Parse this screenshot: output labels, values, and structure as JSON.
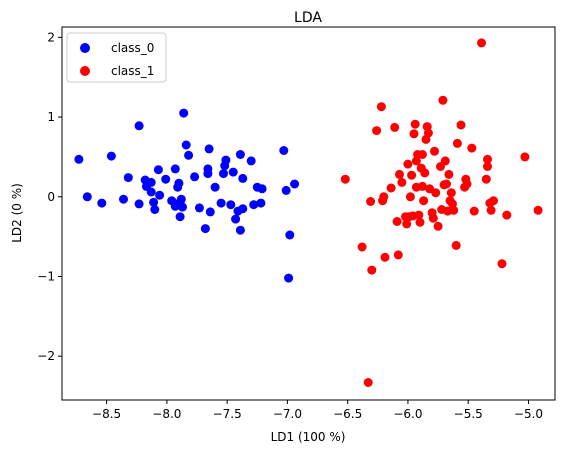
{
  "chart_data": {
    "type": "scatter",
    "title": "LDA",
    "xlabel": "LD1 (100 %)",
    "ylabel": "LD2 (0 %)",
    "xlim": [
      -8.87,
      -4.78
    ],
    "ylim": [
      -2.55,
      2.13
    ],
    "xticks": [
      -8.5,
      -8.0,
      -7.5,
      -7.0,
      -6.5,
      -6.0,
      -5.5,
      -5.0
    ],
    "xtick_labels": [
      "−8.5",
      "−8.0",
      "−7.5",
      "−7.0",
      "−6.5",
      "−6.0",
      "−5.5",
      "−5.0"
    ],
    "yticks": [
      -2,
      -1,
      0,
      1,
      2
    ],
    "ytick_labels": [
      "−2",
      "−1",
      "0",
      "1",
      "2"
    ],
    "grid": false,
    "legend_position": "top-left",
    "series": [
      {
        "name": "class_0",
        "color": "#0000ff",
        "points": [
          [
            -8.73,
            0.47
          ],
          [
            -8.66,
            0.0
          ],
          [
            -8.54,
            -0.08
          ],
          [
            -8.46,
            0.51
          ],
          [
            -8.36,
            -0.03
          ],
          [
            -8.32,
            0.24
          ],
          [
            -8.23,
            0.89
          ],
          [
            -8.23,
            -0.09
          ],
          [
            -8.18,
            0.21
          ],
          [
            -8.17,
            0.13
          ],
          [
            -8.13,
            0.18
          ],
          [
            -8.13,
            0.06
          ],
          [
            -8.11,
            -0.07
          ],
          [
            -8.1,
            -0.16
          ],
          [
            -8.07,
            0.34
          ],
          [
            -8.06,
            0.02
          ],
          [
            -8.01,
            0.22
          ],
          [
            -7.96,
            -0.05
          ],
          [
            -7.93,
            -0.12
          ],
          [
            -7.93,
            0.35
          ],
          [
            -7.91,
            0.12
          ],
          [
            -7.9,
            0.17
          ],
          [
            -7.89,
            -0.25
          ],
          [
            -7.89,
            -0.07
          ],
          [
            -7.88,
            -0.03
          ],
          [
            -7.87,
            -0.13
          ],
          [
            -7.86,
            1.05
          ],
          [
            -7.84,
            0.65
          ],
          [
            -7.82,
            0.52
          ],
          [
            -7.77,
            0.25
          ],
          [
            -7.73,
            -0.14
          ],
          [
            -7.68,
            -0.4
          ],
          [
            -7.66,
            0.29
          ],
          [
            -7.66,
            0.35
          ],
          [
            -7.65,
            0.6
          ],
          [
            -7.64,
            -0.19
          ],
          [
            -7.6,
            0.12
          ],
          [
            -7.55,
            -0.08
          ],
          [
            -7.53,
            0.29
          ],
          [
            -7.52,
            0.39
          ],
          [
            -7.51,
            0.46
          ],
          [
            -7.47,
            -0.1
          ],
          [
            -7.45,
            0.31
          ],
          [
            -7.43,
            -0.28
          ],
          [
            -7.41,
            -0.18
          ],
          [
            -7.39,
            -0.42
          ],
          [
            -7.39,
            0.53
          ],
          [
            -7.37,
            -0.15
          ],
          [
            -7.37,
            0.23
          ],
          [
            -7.3,
            0.45
          ],
          [
            -7.28,
            -0.1
          ],
          [
            -7.25,
            0.12
          ],
          [
            -7.22,
            -0.08
          ],
          [
            -7.21,
            0.1
          ],
          [
            -7.03,
            0.58
          ],
          [
            -7.01,
            0.08
          ],
          [
            -6.99,
            -1.02
          ],
          [
            -6.98,
            -0.48
          ],
          [
            -6.94,
            0.16
          ]
        ]
      },
      {
        "name": "class_1",
        "color": "#ff0000",
        "points": [
          [
            -6.52,
            0.22
          ],
          [
            -6.38,
            -0.63
          ],
          [
            -6.33,
            -2.33
          ],
          [
            -6.31,
            -0.06
          ],
          [
            -6.3,
            -0.92
          ],
          [
            -6.26,
            0.83
          ],
          [
            -6.22,
            1.13
          ],
          [
            -6.21,
            -0.05
          ],
          [
            -6.2,
            0.0
          ],
          [
            -6.19,
            -0.76
          ],
          [
            -6.14,
            0.11
          ],
          [
            -6.11,
            0.87
          ],
          [
            -6.09,
            -0.31
          ],
          [
            -6.08,
            -0.73
          ],
          [
            -6.07,
            0.28
          ],
          [
            -6.05,
            0.18
          ],
          [
            -6.02,
            -0.25
          ],
          [
            -6.01,
            -0.34
          ],
          [
            -6.0,
            0.41
          ],
          [
            -5.99,
            -0.25
          ],
          [
            -5.98,
            0.0
          ],
          [
            -5.97,
            0.27
          ],
          [
            -5.96,
            -0.24
          ],
          [
            -5.95,
            0.79
          ],
          [
            -5.94,
            0.91
          ],
          [
            -5.93,
            0.12
          ],
          [
            -5.93,
            0.45
          ],
          [
            -5.92,
            0.53
          ],
          [
            -5.91,
            -0.23
          ],
          [
            -5.9,
            -0.32
          ],
          [
            -5.89,
            0.36
          ],
          [
            -5.88,
            0.13
          ],
          [
            -5.88,
            0.53
          ],
          [
            -5.87,
            -0.05
          ],
          [
            -5.86,
            0.3
          ],
          [
            -5.85,
            0.72
          ],
          [
            -5.84,
            0.88
          ],
          [
            -5.83,
            0.8
          ],
          [
            -5.82,
            0.1
          ],
          [
            -5.8,
            -0.2
          ],
          [
            -5.79,
            -0.27
          ],
          [
            -5.78,
            0.57
          ],
          [
            -5.77,
            0.05
          ],
          [
            -5.75,
            -0.37
          ],
          [
            -5.73,
            0.38
          ],
          [
            -5.72,
            -0.16
          ],
          [
            -5.71,
            1.21
          ],
          [
            -5.7,
            0.15
          ],
          [
            -5.69,
            0.45
          ],
          [
            -5.68,
            0.16
          ],
          [
            -5.67,
            -0.18
          ],
          [
            -5.66,
            0.28
          ],
          [
            -5.65,
            -0.05
          ],
          [
            -5.64,
            0.05
          ],
          [
            -5.63,
            -0.09
          ],
          [
            -5.62,
            -0.17
          ],
          [
            -5.6,
            -0.61
          ],
          [
            -5.59,
            0.67
          ],
          [
            -5.56,
            0.9
          ],
          [
            -5.53,
            0.12
          ],
          [
            -5.52,
            0.22
          ],
          [
            -5.51,
            0.16
          ],
          [
            -5.47,
            0.61
          ],
          [
            -5.45,
            -0.18
          ],
          [
            -5.39,
            1.93
          ],
          [
            -5.35,
            0.22
          ],
          [
            -5.34,
            0.38
          ],
          [
            -5.34,
            0.47
          ],
          [
            -5.32,
            -0.08
          ],
          [
            -5.31,
            -0.17
          ],
          [
            -5.29,
            -0.05
          ],
          [
            -5.22,
            -0.84
          ],
          [
            -5.18,
            -0.23
          ],
          [
            -5.03,
            0.5
          ],
          [
            -4.92,
            -0.17
          ]
        ]
      }
    ]
  }
}
